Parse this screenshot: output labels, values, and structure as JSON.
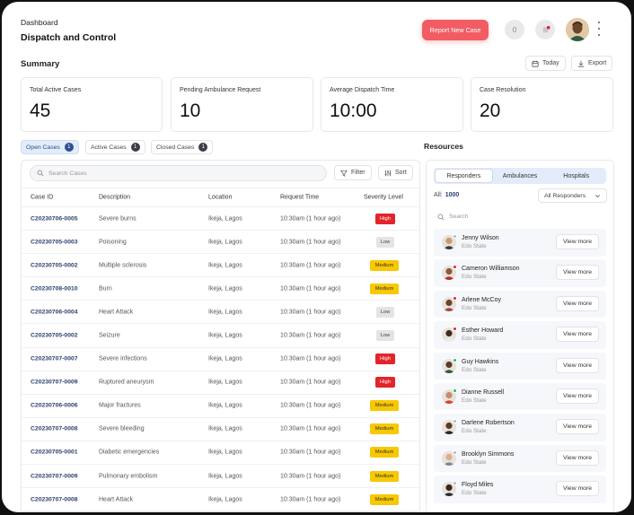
{
  "header": {
    "breadcrumb": "Dashboard",
    "title": "Dispatch and Control",
    "report_button": "Report New Case",
    "notification_count": "0"
  },
  "summary": {
    "heading": "Summary",
    "today_label": "Today",
    "export_label": "Export",
    "cards": [
      {
        "label": "Total Active Cases",
        "value": "45"
      },
      {
        "label": "Pending Ambulance Request",
        "value": "10"
      },
      {
        "label": "Average Dispatch Time",
        "value": "10:00"
      },
      {
        "label": "Case Resolution",
        "value": "20"
      }
    ]
  },
  "case_tabs": [
    {
      "label": "Open Cases",
      "count": "1",
      "active": true
    },
    {
      "label": "Active Cases",
      "count": "1",
      "active": false
    },
    {
      "label": "Closed Cases",
      "count": "1",
      "active": false
    }
  ],
  "table": {
    "search_placeholder": "Search Cases",
    "filter_label": "Filter",
    "sort_label": "Sort",
    "columns": [
      "Case ID",
      "Description",
      "Location",
      "Request Time",
      "Severity Level"
    ],
    "rows": [
      {
        "id": "C20230706-0005",
        "desc": "Severe burns",
        "loc": "Ikeja, Lagos",
        "time": "10:30am (1 hour ago)",
        "sev": "High"
      },
      {
        "id": "C20230705-0003",
        "desc": "Poisoning",
        "loc": "Ikeja, Lagos",
        "time": "10:30am (1 hour ago)",
        "sev": "Low"
      },
      {
        "id": "C20230705-0002",
        "desc": "Multiple sclerosis",
        "loc": "Ikeja, Lagos",
        "time": "10:30am (1 hour ago)",
        "sev": "Medium"
      },
      {
        "id": "C20230708-0010",
        "desc": "Burn",
        "loc": "Ikeja, Lagos",
        "time": "10:30am (1 hour ago)",
        "sev": "Medium"
      },
      {
        "id": "C20230706-0004",
        "desc": "Heart Attack",
        "loc": "Ikeja, Lagos",
        "time": "10:30am (1 hour ago)",
        "sev": "Low"
      },
      {
        "id": "C20230705-0002",
        "desc": "Seizure",
        "loc": "Ikeja, Lagos",
        "time": "10:30am (1 hour ago)",
        "sev": "Low"
      },
      {
        "id": "C20230707-0007",
        "desc": "Severe infections",
        "loc": "Ikeja, Lagos",
        "time": "10:30am (1 hour ago)",
        "sev": "High"
      },
      {
        "id": "C20230707-0009",
        "desc": "Ruptured aneurysm",
        "loc": "Ikeja, Lagos",
        "time": "10:30am (1 hour ago)",
        "sev": "High"
      },
      {
        "id": "C20230706-0006",
        "desc": "Major fractures",
        "loc": "Ikeja, Lagos",
        "time": "10:30am (1 hour ago)",
        "sev": "Medium"
      },
      {
        "id": "C20230707-0008",
        "desc": "Severe bleeding",
        "loc": "Ikeja, Lagos",
        "time": "10:30am (1 hour ago)",
        "sev": "Medium"
      },
      {
        "id": "C20230705-0001",
        "desc": "Diabetic emergencies",
        "loc": "Ikeja, Lagos",
        "time": "10:30am (1 hour ago)",
        "sev": "Medium"
      },
      {
        "id": "C20230707-0009",
        "desc": "Pulmonary embolism",
        "loc": "Ikeja, Lagos",
        "time": "10:30am (1 hour ago)",
        "sev": "Medium"
      },
      {
        "id": "C20230707-0008",
        "desc": "Heart Attack",
        "loc": "Ikeja, Lagos",
        "time": "10:30am (1 hour ago)",
        "sev": "Medium"
      }
    ]
  },
  "resources": {
    "heading": "Resources",
    "tabs": [
      {
        "label": "Responders",
        "active": true
      },
      {
        "label": "Ambulances",
        "active": false
      },
      {
        "label": "Hospitals",
        "active": false
      }
    ],
    "all_label": "All:",
    "all_count": "1000",
    "filter_select": "All Responders",
    "search_placeholder": "Search",
    "view_label": "View more",
    "responders": [
      {
        "name": "Jenny Wilson",
        "state": "Edo State",
        "status_color": "#b7b9c0",
        "skin": "#c79a73",
        "shirt": "#3b3b3b"
      },
      {
        "name": "Cameron Williamson",
        "state": "Edo State",
        "status_color": "#e3242b",
        "skin": "#8a5a3c",
        "shirt": "#b23030"
      },
      {
        "name": "Arlene McCoy",
        "state": "Edo State",
        "status_color": "#e3242b",
        "skin": "#6b4430",
        "shirt": "#a0484a"
      },
      {
        "name": "Esther Howard",
        "state": "Edo State",
        "status_color": "#e3242b",
        "skin": "#3e2a20",
        "shirt": "#ececec"
      },
      {
        "name": "Guy Hawkins",
        "state": "Edo State",
        "status_color": "#2fb84a",
        "skin": "#5b3c28",
        "shirt": "#2e5a3a"
      },
      {
        "name": "Dianne Russell",
        "state": "Edo State",
        "status_color": "#2fb84a",
        "skin": "#c58b6b",
        "shirt": "#d5453f"
      },
      {
        "name": "Darlene Robertson",
        "state": "Edo State",
        "status_color": "#b7b9c0",
        "skin": "#5a3b2a",
        "shirt": "#2a2a2a"
      },
      {
        "name": "Brooklyn Simmons",
        "state": "Edo State",
        "status_color": "#b7b9c0",
        "skin": "#d8b08c",
        "shirt": "#7a8aa3"
      },
      {
        "name": "Floyd Miles",
        "state": "Edo State",
        "status_color": "#b7b9c0",
        "skin": "#3a2820",
        "shirt": "#2c2c2c"
      }
    ]
  },
  "colors": {
    "accent": "#f25c63",
    "link": "#2b4170",
    "high": "#e3242b",
    "medium": "#f8c800",
    "low": "#e4e4e6"
  }
}
